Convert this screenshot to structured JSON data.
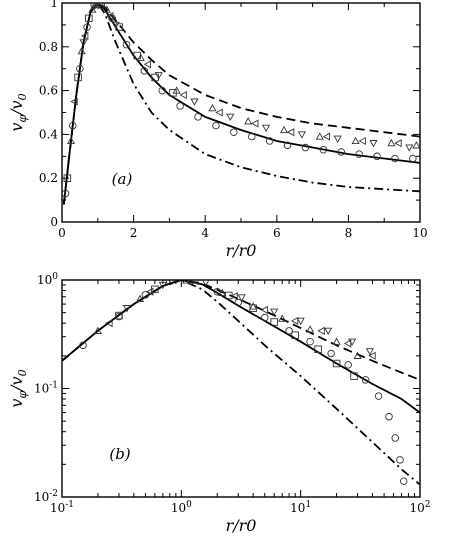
{
  "chart_data": [
    {
      "type": "line",
      "panel_label": "(a)",
      "xlabel": "r/r0",
      "ylabel": "vφ/v0",
      "xscale": "linear",
      "yscale": "linear",
      "xlim": [
        0,
        10
      ],
      "ylim": [
        0,
        1
      ],
      "xticks": [
        0,
        2,
        4,
        6,
        8,
        10
      ],
      "xtick_labels": [
        "0",
        "2",
        "4",
        "6",
        "8",
        "10"
      ],
      "yticks": [
        0,
        0.2,
        0.4,
        0.6,
        0.8,
        1
      ],
      "ytick_labels": [
        "0",
        "0.2",
        "0.4",
        "0.6",
        "0.8",
        "1"
      ],
      "grid": false,
      "series": [
        {
          "style": "dashed",
          "x": [
            0.05,
            0.2,
            0.4,
            0.6,
            0.8,
            1.0,
            1.2,
            1.5,
            2,
            2.5,
            3,
            4,
            5,
            6,
            7,
            8,
            9,
            10
          ],
          "y": [
            0.08,
            0.3,
            0.58,
            0.82,
            0.96,
            1.0,
            0.98,
            0.92,
            0.82,
            0.74,
            0.67,
            0.58,
            0.52,
            0.48,
            0.45,
            0.43,
            0.41,
            0.39
          ]
        },
        {
          "style": "solid",
          "x": [
            0.05,
            0.2,
            0.4,
            0.6,
            0.8,
            1.0,
            1.2,
            1.5,
            2,
            2.5,
            3,
            4,
            5,
            6,
            7,
            8,
            9,
            10
          ],
          "y": [
            0.08,
            0.3,
            0.58,
            0.82,
            0.96,
            1.0,
            0.97,
            0.89,
            0.76,
            0.66,
            0.58,
            0.48,
            0.42,
            0.37,
            0.34,
            0.31,
            0.29,
            0.27
          ]
        },
        {
          "style": "dashdot",
          "x": [
            0.05,
            0.2,
            0.4,
            0.6,
            0.8,
            1.0,
            1.2,
            1.5,
            2,
            2.5,
            3,
            4,
            5,
            6,
            7,
            8,
            9,
            10
          ],
          "y": [
            0.08,
            0.3,
            0.58,
            0.82,
            0.96,
            1.0,
            0.95,
            0.82,
            0.63,
            0.5,
            0.42,
            0.31,
            0.25,
            0.21,
            0.18,
            0.16,
            0.15,
            0.14
          ]
        },
        {
          "marker": "circle",
          "x": [
            0.1,
            0.3,
            0.5,
            0.7,
            0.9,
            1.1,
            1.4,
            1.8,
            2.3,
            2.8,
            3.3,
            3.8,
            4.3,
            4.8,
            5.3,
            5.8,
            6.3,
            6.8,
            7.3,
            7.8,
            8.3,
            8.8,
            9.3,
            9.8
          ],
          "y": [
            0.13,
            0.44,
            0.7,
            0.89,
            0.99,
            0.99,
            0.93,
            0.81,
            0.69,
            0.6,
            0.53,
            0.48,
            0.44,
            0.41,
            0.39,
            0.37,
            0.35,
            0.34,
            0.33,
            0.32,
            0.31,
            0.3,
            0.29,
            0.29
          ]
        },
        {
          "marker": "square",
          "x": [
            0.15,
            0.45,
            0.75,
            1.05,
            1.6,
            2.1,
            2.6,
            3.1
          ],
          "y": [
            0.2,
            0.66,
            0.93,
            1.0,
            0.89,
            0.76,
            0.66,
            0.59
          ]
        },
        {
          "marker": "triangle-up",
          "x": [
            0.25,
            0.55,
            0.85,
            1.25,
            2.2,
            3.2,
            4.2,
            5.2,
            6.2,
            7.2,
            8.2,
            9.2,
            9.9
          ],
          "y": [
            0.37,
            0.78,
            0.97,
            0.97,
            0.75,
            0.6,
            0.52,
            0.46,
            0.42,
            0.39,
            0.37,
            0.36,
            0.35
          ]
        },
        {
          "marker": "triangle-left",
          "x": [
            0.35,
            0.65,
            0.95,
            1.35,
            2.4,
            3.4,
            4.4,
            5.4,
            6.4,
            7.4,
            8.4,
            9.4
          ],
          "y": [
            0.55,
            0.85,
            0.99,
            0.94,
            0.72,
            0.58,
            0.5,
            0.45,
            0.41,
            0.39,
            0.37,
            0.36
          ]
        },
        {
          "marker": "triangle-down",
          "x": [
            0.6,
            1.0,
            1.5,
            2.7,
            3.7,
            4.7,
            5.7,
            6.7,
            7.7,
            8.7,
            9.7
          ],
          "y": [
            0.82,
            1.0,
            0.9,
            0.67,
            0.55,
            0.48,
            0.43,
            0.4,
            0.38,
            0.36,
            0.34
          ]
        }
      ]
    },
    {
      "type": "line",
      "panel_label": "(b)",
      "xlabel": "r/r0",
      "ylabel": "vφ/v0",
      "xscale": "log",
      "yscale": "log",
      "xlim": [
        0.1,
        100
      ],
      "ylim": [
        0.01,
        1
      ],
      "xticks": [
        0.1,
        1,
        10,
        100
      ],
      "xtick_labels": [
        [
          "10",
          "-1"
        ],
        [
          "10",
          "0"
        ],
        [
          "10",
          "1"
        ],
        [
          "10",
          "2"
        ]
      ],
      "yticks": [
        0.01,
        0.1,
        1
      ],
      "ytick_labels": [
        [
          "10",
          "-2"
        ],
        [
          "10",
          "-1"
        ],
        [
          "10",
          "0"
        ]
      ],
      "grid": false,
      "series": [
        {
          "style": "dashed",
          "x": [
            0.1,
            0.2,
            0.4,
            0.7,
            1.0,
            1.5,
            2,
            3,
            5,
            10,
            20,
            40,
            70,
            100
          ],
          "y": [
            0.18,
            0.34,
            0.6,
            0.88,
            1.0,
            0.93,
            0.81,
            0.67,
            0.52,
            0.36,
            0.25,
            0.18,
            0.14,
            0.12
          ]
        },
        {
          "style": "solid",
          "x": [
            0.1,
            0.2,
            0.4,
            0.7,
            1.0,
            1.5,
            2,
            3,
            5,
            10,
            20,
            40,
            70,
            100
          ],
          "y": [
            0.18,
            0.34,
            0.6,
            0.88,
            1.0,
            0.91,
            0.76,
            0.58,
            0.42,
            0.27,
            0.17,
            0.11,
            0.08,
            0.06
          ]
        },
        {
          "style": "dashdot",
          "x": [
            0.1,
            0.2,
            0.4,
            0.7,
            1.0,
            1.5,
            2,
            3,
            5,
            10,
            20,
            40,
            70,
            100
          ],
          "y": [
            0.18,
            0.34,
            0.6,
            0.88,
            1.0,
            0.82,
            0.63,
            0.42,
            0.25,
            0.13,
            0.065,
            0.032,
            0.018,
            0.013
          ]
        },
        {
          "marker": "circle",
          "x": [
            0.15,
            0.3,
            0.5,
            0.8,
            1.2,
            2,
            3,
            5,
            8,
            12,
            18,
            25,
            35,
            45,
            55,
            62,
            68,
            73
          ],
          "y": [
            0.25,
            0.46,
            0.73,
            0.97,
            0.98,
            0.78,
            0.62,
            0.45,
            0.34,
            0.27,
            0.21,
            0.165,
            0.12,
            0.085,
            0.055,
            0.035,
            0.022,
            0.014
          ]
        },
        {
          "marker": "square",
          "x": [
            0.3,
            0.6,
            2.5,
            4,
            6,
            9,
            14,
            20,
            28
          ],
          "y": [
            0.47,
            0.82,
            0.72,
            0.55,
            0.41,
            0.31,
            0.23,
            0.17,
            0.13
          ]
        },
        {
          "marker": "triangle-up",
          "x": [
            0.2,
            0.45,
            1.1,
            2.2,
            4,
            7,
            12,
            20,
            30
          ],
          "y": [
            0.34,
            0.67,
            0.99,
            0.76,
            0.57,
            0.44,
            0.35,
            0.27,
            0.2
          ]
        },
        {
          "marker": "triangle-left",
          "x": [
            0.25,
            0.55,
            1.3,
            2.8,
            5,
            9,
            15,
            25,
            40
          ],
          "y": [
            0.4,
            0.78,
            0.98,
            0.71,
            0.53,
            0.42,
            0.34,
            0.26,
            0.2
          ]
        },
        {
          "marker": "triangle-down",
          "x": [
            0.35,
            0.7,
            1.6,
            3.2,
            6,
            10,
            17,
            27,
            38
          ],
          "y": [
            0.55,
            0.9,
            0.95,
            0.69,
            0.51,
            0.42,
            0.34,
            0.27,
            0.22
          ]
        }
      ]
    }
  ]
}
